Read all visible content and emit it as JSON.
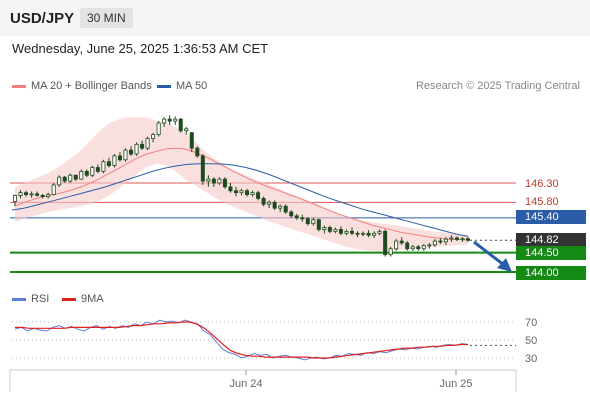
{
  "header": {
    "symbol": "USD/JPY",
    "timeframe": "30 MIN"
  },
  "datetime": "Wednesday, June 25, 2025 1:36:53 AM CET",
  "legend": {
    "ma20": {
      "label": "MA 20 + Bollinger Bands",
      "color": "#f08080"
    },
    "ma50": {
      "label": "MA 50",
      "color": "#2a5ca8"
    }
  },
  "credit": "Research © 2025 Trading Central",
  "levels": {
    "resistance2": {
      "label": "146.30",
      "value": 146.3,
      "color": "#e05555"
    },
    "resistance1": {
      "label": "145.80",
      "value": 145.8,
      "color": "#e05555"
    },
    "ma50_level": {
      "label": "145.40",
      "value": 145.4,
      "color": "#2a5ca8"
    },
    "current": {
      "label": "144.82",
      "value": 144.82,
      "color": "#333333"
    },
    "pivot": {
      "label": "144.50",
      "value": 144.5,
      "color": "#148a14"
    },
    "target": {
      "label": "144.00",
      "value": 144.0,
      "color": "#148a14"
    }
  },
  "rsi_legend": {
    "rsi": {
      "label": "RSI",
      "color": "#5b7fd6"
    },
    "ma9": {
      "label": "9MA",
      "color": "#e02020"
    }
  },
  "rsi_levels": [
    "70",
    "50",
    "30"
  ],
  "x_labels": [
    "Jun 24",
    "Jun 25"
  ],
  "chart_data": {
    "type": "candlestick",
    "price_range": [
      143.85,
      148.2
    ],
    "candles": [
      [
        145.82,
        146.0,
        145.7,
        145.98
      ],
      [
        145.98,
        146.12,
        145.9,
        146.05
      ],
      [
        146.05,
        146.1,
        145.95,
        146.0
      ],
      [
        146.0,
        146.08,
        145.92,
        146.02
      ],
      [
        146.02,
        146.08,
        145.95,
        145.98
      ],
      [
        145.98,
        146.02,
        145.9,
        145.95
      ],
      [
        145.95,
        146.05,
        145.9,
        146.0
      ],
      [
        146.0,
        146.3,
        145.98,
        146.25
      ],
      [
        146.25,
        146.5,
        146.2,
        146.45
      ],
      [
        146.45,
        146.48,
        146.3,
        146.35
      ],
      [
        146.35,
        146.55,
        146.3,
        146.5
      ],
      [
        146.5,
        146.52,
        146.35,
        146.4
      ],
      [
        146.4,
        146.65,
        146.38,
        146.6
      ],
      [
        146.6,
        146.65,
        146.45,
        146.5
      ],
      [
        146.5,
        146.75,
        146.45,
        146.7
      ],
      [
        146.7,
        146.78,
        146.55,
        146.6
      ],
      [
        146.6,
        146.9,
        146.55,
        146.85
      ],
      [
        146.85,
        146.95,
        146.7,
        146.75
      ],
      [
        146.75,
        147.05,
        146.7,
        147.0
      ],
      [
        147.0,
        147.1,
        146.85,
        146.9
      ],
      [
        146.9,
        147.2,
        146.85,
        147.15
      ],
      [
        147.15,
        147.25,
        147.0,
        147.05
      ],
      [
        147.05,
        147.35,
        147.0,
        147.3
      ],
      [
        147.3,
        147.4,
        147.15,
        147.2
      ],
      [
        147.2,
        147.5,
        147.15,
        147.45
      ],
      [
        147.45,
        147.6,
        147.35,
        147.55
      ],
      [
        147.55,
        147.9,
        147.5,
        147.85
      ],
      [
        147.85,
        148.0,
        147.75,
        147.95
      ],
      [
        147.95,
        148.05,
        147.8,
        147.9
      ],
      [
        147.9,
        148.02,
        147.8,
        147.95
      ],
      [
        147.95,
        147.98,
        147.6,
        147.65
      ],
      [
        147.65,
        147.75,
        147.55,
        147.7
      ],
      [
        147.6,
        147.62,
        147.1,
        147.2
      ],
      [
        147.2,
        147.25,
        146.95,
        147.0
      ],
      [
        147.0,
        147.05,
        146.25,
        146.35
      ],
      [
        146.35,
        146.5,
        146.2,
        146.4
      ],
      [
        146.4,
        146.45,
        146.2,
        146.3
      ],
      [
        146.3,
        146.45,
        146.25,
        146.4
      ],
      [
        146.4,
        146.45,
        146.15,
        146.2
      ],
      [
        146.2,
        146.3,
        146.05,
        146.1
      ],
      [
        146.1,
        146.2,
        145.95,
        146.05
      ],
      [
        146.05,
        146.15,
        145.98,
        146.1
      ],
      [
        146.1,
        146.15,
        145.95,
        146.0
      ],
      [
        146.0,
        146.1,
        145.95,
        146.05
      ],
      [
        146.05,
        146.1,
        145.85,
        145.9
      ],
      [
        145.9,
        145.95,
        145.7,
        145.75
      ],
      [
        145.75,
        145.85,
        145.65,
        145.8
      ],
      [
        145.8,
        145.85,
        145.6,
        145.65
      ],
      [
        145.65,
        145.75,
        145.55,
        145.7
      ],
      [
        145.7,
        145.75,
        145.5,
        145.55
      ],
      [
        145.55,
        145.6,
        145.4,
        145.45
      ],
      [
        145.45,
        145.5,
        145.35,
        145.4
      ],
      [
        145.4,
        145.48,
        145.3,
        145.38
      ],
      [
        145.38,
        145.42,
        145.2,
        145.25
      ],
      [
        145.25,
        145.4,
        145.2,
        145.35
      ],
      [
        145.35,
        145.38,
        145.05,
        145.1
      ],
      [
        145.1,
        145.2,
        145.0,
        145.15
      ],
      [
        145.15,
        145.2,
        145.0,
        145.05
      ],
      [
        145.05,
        145.15,
        145.0,
        145.1
      ],
      [
        145.1,
        145.18,
        144.95,
        145.0
      ],
      [
        145.0,
        145.1,
        144.95,
        145.05
      ],
      [
        145.05,
        145.15,
        144.95,
        145.0
      ],
      [
        145.0,
        145.05,
        144.9,
        144.98
      ],
      [
        144.98,
        145.05,
        144.92,
        145.0
      ],
      [
        145.0,
        145.08,
        144.9,
        144.95
      ],
      [
        144.95,
        145.05,
        144.88,
        145.0
      ],
      [
        145.0,
        145.1,
        144.95,
        145.05
      ],
      [
        145.05,
        145.1,
        144.4,
        144.45
      ],
      [
        144.45,
        144.65,
        144.4,
        144.6
      ],
      [
        144.6,
        144.85,
        144.55,
        144.8
      ],
      [
        144.8,
        144.9,
        144.7,
        144.75
      ],
      [
        144.75,
        144.8,
        144.55,
        144.6
      ],
      [
        144.6,
        144.7,
        144.55,
        144.65
      ],
      [
        144.65,
        144.7,
        144.55,
        144.6
      ],
      [
        144.6,
        144.72,
        144.55,
        144.68
      ],
      [
        144.68,
        144.75,
        144.6,
        144.7
      ],
      [
        144.7,
        144.85,
        144.65,
        144.8
      ],
      [
        144.8,
        144.88,
        144.72,
        144.78
      ],
      [
        144.78,
        144.9,
        144.7,
        144.85
      ],
      [
        144.85,
        144.95,
        144.78,
        144.88
      ],
      [
        144.88,
        144.92,
        144.8,
        144.84
      ],
      [
        144.84,
        144.9,
        144.78,
        144.86
      ],
      [
        144.86,
        144.9,
        144.78,
        144.82
      ]
    ],
    "ma20": [
      145.7,
      145.8,
      145.88,
      145.95,
      146.0,
      146.05,
      146.12,
      146.2,
      146.3,
      146.42,
      146.55,
      146.68,
      146.82,
      146.95,
      147.05,
      147.12,
      147.18,
      147.2,
      147.18,
      147.1,
      147.0,
      146.88,
      146.75,
      146.62,
      146.5,
      146.38,
      146.28,
      146.18,
      146.1,
      146.0,
      145.92,
      145.82,
      145.72,
      145.62,
      145.52,
      145.44,
      145.36,
      145.28,
      145.2,
      145.14,
      145.08,
      145.02,
      144.98,
      144.94,
      144.9,
      144.87,
      144.85,
      144.84,
      144.83
    ],
    "bb_upper": [
      146.2,
      146.3,
      146.4,
      146.5,
      146.62,
      146.78,
      146.95,
      147.15,
      147.4,
      147.65,
      147.85,
      147.95,
      148.0,
      148.0,
      147.98,
      147.92,
      147.85,
      147.75,
      147.6,
      147.4,
      147.15,
      146.95,
      146.8,
      146.65,
      146.55,
      146.45,
      146.35,
      146.25,
      146.15,
      146.05,
      145.95,
      145.85,
      145.75,
      145.65,
      145.55,
      145.45,
      145.38,
      145.32,
      145.28,
      145.25,
      145.22,
      145.18,
      145.14,
      145.1,
      145.06,
      145.03,
      145.0,
      144.98,
      144.96
    ],
    "bb_lower": [
      145.3,
      145.38,
      145.45,
      145.52,
      145.58,
      145.62,
      145.66,
      145.7,
      145.76,
      145.85,
      145.98,
      146.15,
      146.35,
      146.55,
      146.72,
      146.8,
      146.75,
      146.6,
      146.4,
      146.25,
      146.1,
      145.95,
      145.82,
      145.7,
      145.6,
      145.5,
      145.4,
      145.3,
      145.22,
      145.14,
      145.06,
      144.98,
      144.9,
      144.82,
      144.74,
      144.66,
      144.6,
      144.56,
      144.54,
      144.54,
      144.56,
      144.58,
      144.6,
      144.62,
      144.64,
      144.66,
      144.68,
      144.7,
      144.7
    ],
    "ma50": [
      145.6,
      145.65,
      145.72,
      145.8,
      145.88,
      145.96,
      146.04,
      146.12,
      146.2,
      146.3,
      146.4,
      146.5,
      146.6,
      146.68,
      146.74,
      146.78,
      146.8,
      146.8,
      146.79,
      146.76,
      146.7,
      146.62,
      146.52,
      146.4,
      146.28,
      146.16,
      146.04,
      145.92,
      145.82,
      145.72,
      145.62,
      145.54,
      145.46,
      145.38,
      145.3,
      145.22,
      145.14,
      145.06,
      144.98,
      144.92
    ],
    "rsi": [
      62,
      64,
      60,
      63,
      61,
      60,
      64,
      66,
      63,
      65,
      62,
      60,
      64,
      66,
      62,
      65,
      63,
      66,
      64,
      68,
      66,
      70,
      68,
      72,
      70,
      71,
      69,
      72,
      70,
      68,
      60,
      56,
      48,
      40,
      36,
      34,
      30,
      32,
      35,
      33,
      34,
      30,
      32,
      33,
      31,
      30,
      28,
      30,
      31,
      29,
      30,
      33,
      32,
      35,
      34,
      33,
      36,
      35,
      37,
      36,
      38,
      40,
      39,
      41,
      40,
      42,
      43,
      42,
      44,
      45,
      44,
      46,
      45
    ],
    "rsi_ma9": [
      64,
      64,
      63,
      63,
      63,
      63,
      63,
      63,
      64,
      64,
      64,
      64,
      64,
      64,
      64,
      64,
      65,
      66,
      66,
      67,
      68,
      68,
      69,
      69,
      70,
      70,
      68,
      64,
      58,
      51,
      44,
      38,
      35,
      33,
      32,
      32,
      31,
      31,
      31,
      31,
      31,
      31,
      31,
      30,
      30,
      30,
      31,
      32,
      33,
      34,
      35,
      36,
      37,
      38,
      39,
      40,
      41,
      41,
      42,
      42,
      43,
      43,
      44,
      44,
      45,
      45
    ]
  }
}
